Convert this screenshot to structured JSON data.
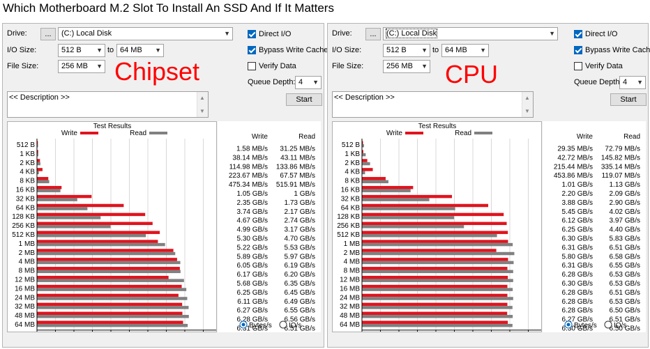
{
  "title": "Which Motherboard M.2 Slot To Install An SSD And If It Matters",
  "ui": {
    "drive_label": "Drive:",
    "drive_browse": "...",
    "drive_value": "(C:) Local Disk",
    "io_size_label": "I/O Size:",
    "io_from": "512 B",
    "io_to_label": "to",
    "io_to": "64 MB",
    "file_size_label": "File Size:",
    "file_size": "256 MB",
    "direct_io": "Direct I/O",
    "bypass_write_cache": "Bypass Write Cache",
    "verify_data": "Verify Data",
    "queue_depth_label": "Queue Depth:",
    "queue_depth": "4",
    "description": "<< Description >>",
    "start": "Start",
    "test_results": "Test Results",
    "legend_write": "Write",
    "legend_read": "Read",
    "col_write": "Write",
    "col_read": "Read",
    "x_axis_label": "Transfer Rate - GB/s",
    "radio_bytes": "Bytes/s",
    "radio_ios": "IO/s",
    "x_ticks": [
      "0",
      "0.8",
      "1.6",
      "2.4",
      "3.2",
      "4",
      "4.8",
      "5.6",
      "6.4",
      "7.2",
      "8"
    ],
    "write_color": "#e0141e",
    "read_color": "#808080"
  },
  "chart_data": [
    {
      "type": "bar",
      "annotation": "Chipset",
      "categories": [
        "512 B",
        "1 KB",
        "2 KB",
        "4 KB",
        "8 KB",
        "16 KB",
        "32 KB",
        "64 KB",
        "128 KB",
        "256 KB",
        "512 KB",
        "1 MB",
        "2 MB",
        "4 MB",
        "8 MB",
        "12 MB",
        "16 MB",
        "24 MB",
        "32 MB",
        "48 MB",
        "64 MB"
      ],
      "xlim": [
        0,
        8
      ],
      "series": [
        {
          "name": "Write",
          "values": [
            0.00158,
            0.03814,
            0.11498,
            0.22367,
            0.47534,
            1.05,
            2.35,
            3.74,
            4.67,
            4.99,
            5.3,
            5.22,
            5.89,
            6.05,
            6.17,
            5.68,
            6.25,
            6.11,
            6.27,
            6.28,
            6.31
          ],
          "labels": [
            "1.58 MB/s",
            "38.14 MB/s",
            "114.98 MB/s",
            "223.67 MB/s",
            "475.34 MB/s",
            "1.05 GB/s",
            "2.35 GB/s",
            "3.74 GB/s",
            "4.67 GB/s",
            "4.99 GB/s",
            "5.30 GB/s",
            "5.22 GB/s",
            "5.89 GB/s",
            "6.05 GB/s",
            "6.17 GB/s",
            "5.68 GB/s",
            "6.25 GB/s",
            "6.11 GB/s",
            "6.27 GB/s",
            "6.28 GB/s",
            "6.31 GB/s"
          ]
        },
        {
          "name": "Read",
          "values": [
            0.03125,
            0.04311,
            0.13386,
            0.06757,
            0.51591,
            1.0,
            1.73,
            2.17,
            2.74,
            3.17,
            4.7,
            5.53,
            5.97,
            6.19,
            6.2,
            6.35,
            6.45,
            6.49,
            6.55,
            6.56,
            6.51
          ],
          "labels": [
            "31.25 MB/s",
            "43.11 MB/s",
            "133.86 MB/s",
            "67.57 MB/s",
            "515.91 MB/s",
            "1 GB/s",
            "1.73 GB/s",
            "2.17 GB/s",
            "2.74 GB/s",
            "3.17 GB/s",
            "4.70 GB/s",
            "5.53 GB/s",
            "5.97 GB/s",
            "6.19 GB/s",
            "6.20 GB/s",
            "6.35 GB/s",
            "6.45 GB/s",
            "6.49 GB/s",
            "6.55 GB/s",
            "6.56 GB/s",
            "6.51 GB/s"
          ]
        }
      ]
    },
    {
      "type": "bar",
      "annotation": "CPU",
      "categories": [
        "512 B",
        "1 KB",
        "2 KB",
        "4 KB",
        "8 KB",
        "16 KB",
        "32 KB",
        "64 KB",
        "128 KB",
        "256 KB",
        "512 KB",
        "1 MB",
        "2 MB",
        "4 MB",
        "8 MB",
        "12 MB",
        "16 MB",
        "24 MB",
        "32 MB",
        "48 MB",
        "64 MB"
      ],
      "xlim": [
        0,
        8
      ],
      "series": [
        {
          "name": "Write",
          "values": [
            0.02935,
            0.04272,
            0.21544,
            0.45386,
            1.01,
            2.2,
            3.88,
            5.45,
            6.12,
            6.25,
            6.3,
            6.31,
            5.8,
            6.31,
            6.28,
            6.3,
            6.28,
            6.28,
            6.28,
            6.27,
            6.3
          ],
          "labels": [
            "29.35 MB/s",
            "42.72 MB/s",
            "215.44 MB/s",
            "453.86 MB/s",
            "1.01 GB/s",
            "2.20 GB/s",
            "3.88 GB/s",
            "5.45 GB/s",
            "6.12 GB/s",
            "6.25 GB/s",
            "6.30 GB/s",
            "6.31 GB/s",
            "5.80 GB/s",
            "6.31 GB/s",
            "6.28 GB/s",
            "6.30 GB/s",
            "6.28 GB/s",
            "6.28 GB/s",
            "6.28 GB/s",
            "6.27 GB/s",
            "6.30 GB/s"
          ]
        },
        {
          "name": "Read",
          "values": [
            0.07279,
            0.14582,
            0.33514,
            0.11907,
            1.13,
            2.09,
            2.9,
            4.02,
            3.97,
            4.4,
            5.83,
            6.51,
            6.58,
            6.55,
            6.53,
            6.53,
            6.51,
            6.53,
            6.5,
            6.51,
            6.5
          ],
          "labels": [
            "72.79 MB/s",
            "145.82 MB/s",
            "335.14 MB/s",
            "119.07 MB/s",
            "1.13 GB/s",
            "2.09 GB/s",
            "2.90 GB/s",
            "4.02 GB/s",
            "3.97 GB/s",
            "4.40 GB/s",
            "5.83 GB/s",
            "6.51 GB/s",
            "6.58 GB/s",
            "6.55 GB/s",
            "6.53 GB/s",
            "6.53 GB/s",
            "6.51 GB/s",
            "6.53 GB/s",
            "6.50 GB/s",
            "6.51 GB/s",
            "6.50 GB/s"
          ]
        }
      ]
    }
  ]
}
